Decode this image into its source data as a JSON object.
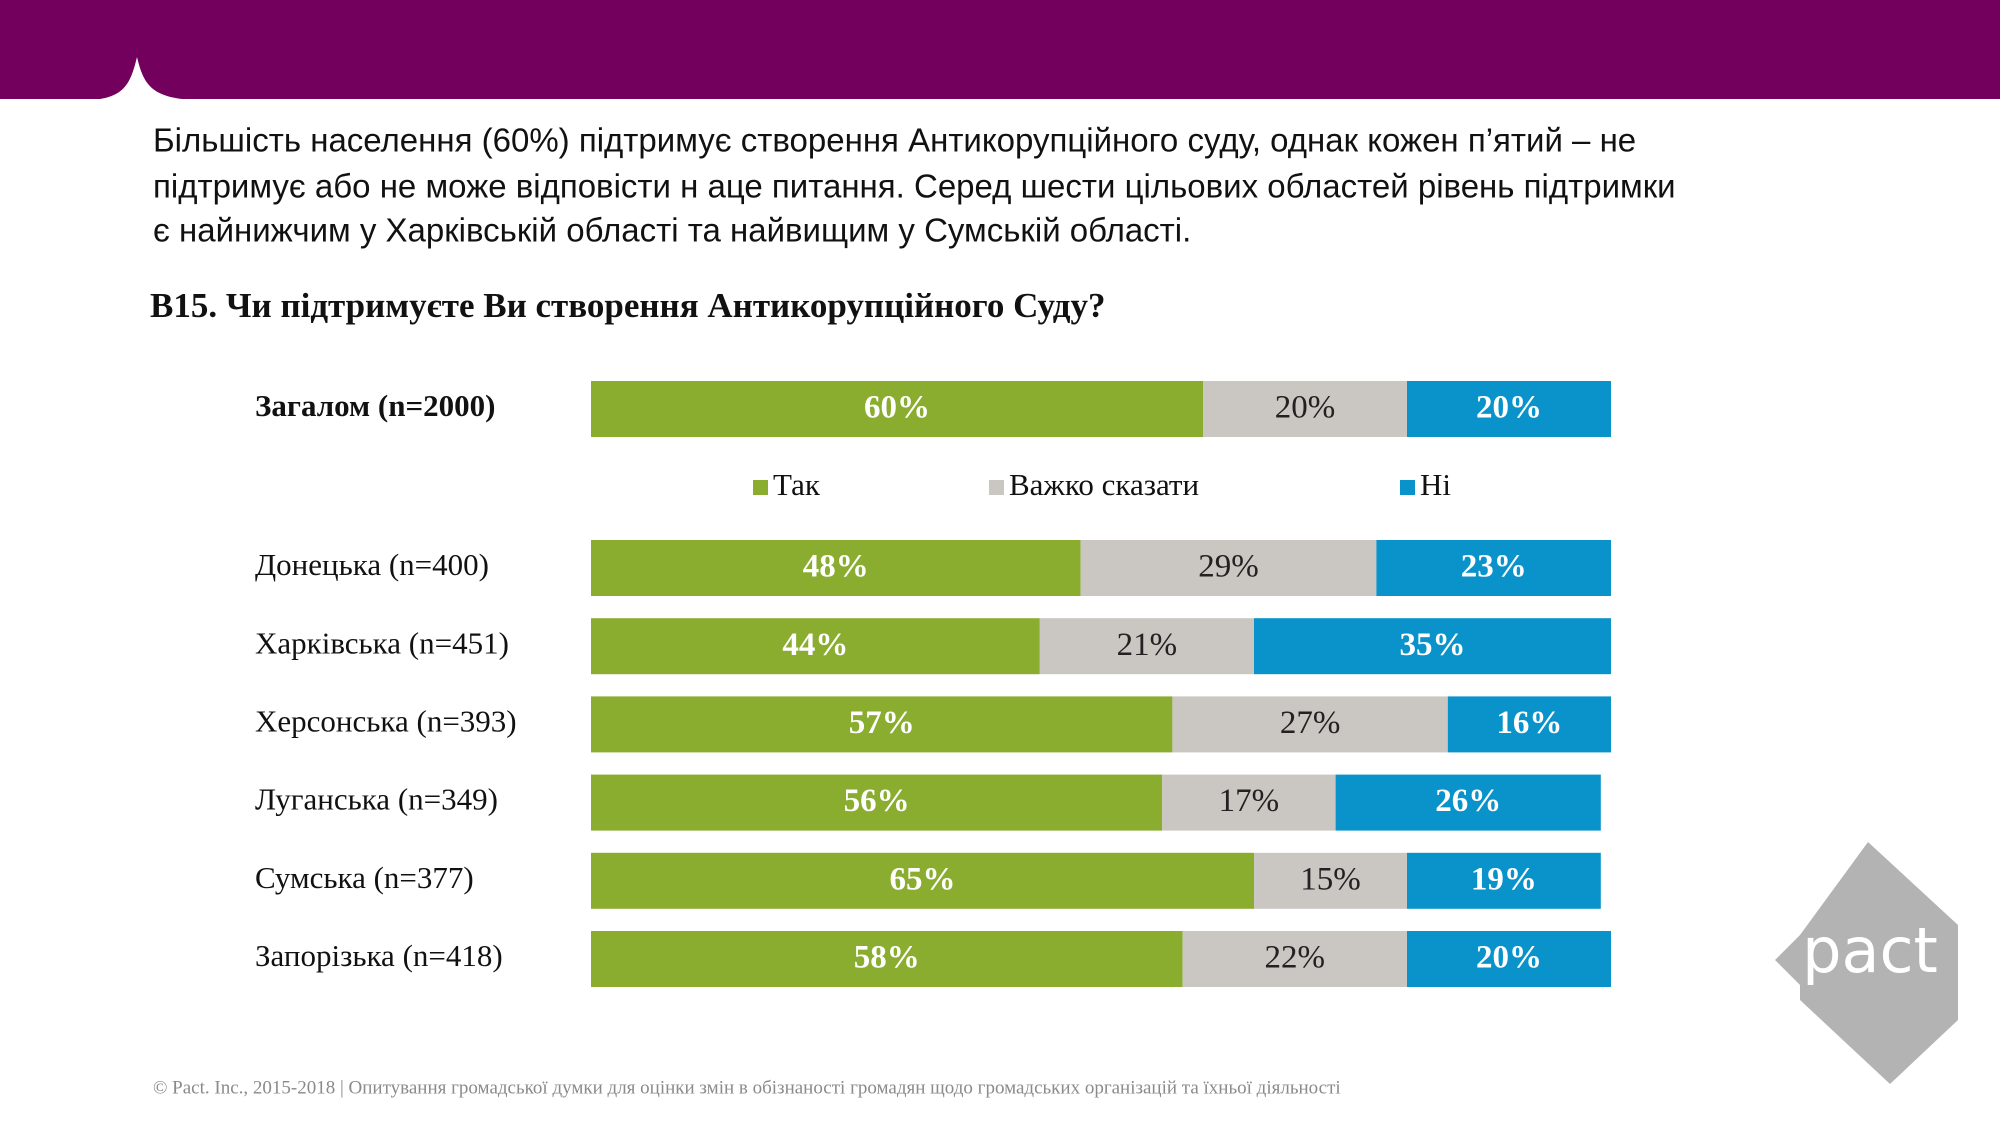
{
  "summary": [
    "Більшість населення (60%) підтримує створення Антикорупційного суду, однак кожен п’ятий – не",
    "підтримує або не може відповісти н аце питання. Серед шести цільових областей рівень підтримки",
    "є найнижчим у Харківській області та найвищим у Сумській області."
  ],
  "footer": "© Pact. Inc., 2015-2018 | Опитування громадської думки для оцінки змін в обізнаності громадян щодо громадських організацій та їхньої діяльності",
  "logo": "pact",
  "chart_data": {
    "type": "stacked-bar",
    "orientation": "horizontal",
    "title": "B15. Чи підтримуєте Ви створення Антикорупційного Суду?",
    "categories": [
      "Загалом (n=2000)",
      "Донецька (n=400)",
      "Харківська (n=451)",
      "Херсонська (n=393)",
      "Луганська (n=349)",
      "Сумська (n=377)",
      "Запорізька (n=418)"
    ],
    "xlim": [
      0,
      100
    ],
    "series": [
      {
        "name": "Так",
        "color": "#8aac2f",
        "label_color": "#ffffff",
        "values": [
          60,
          48,
          44,
          57,
          56,
          65,
          58
        ],
        "value_labels": [
          "60%",
          "48%",
          "44%",
          "57%",
          "56%",
          "65%",
          "58%"
        ]
      },
      {
        "name": "Важко сказати",
        "color": "#cac6c2",
        "label_color": "#222222",
        "values": [
          20,
          29,
          21,
          27,
          17,
          15,
          22
        ],
        "value_labels": [
          "20%",
          "29%",
          "21%",
          "27%",
          "17%",
          "15%",
          "22%"
        ]
      },
      {
        "name": "Ні",
        "color": "#0a93cb",
        "label_color": "#ffffff",
        "values": [
          20,
          23,
          35,
          16,
          26,
          19,
          20
        ],
        "value_labels": [
          "20%",
          "23%",
          "35%",
          "16%",
          "26%",
          "19%",
          "20%"
        ]
      }
    ]
  }
}
